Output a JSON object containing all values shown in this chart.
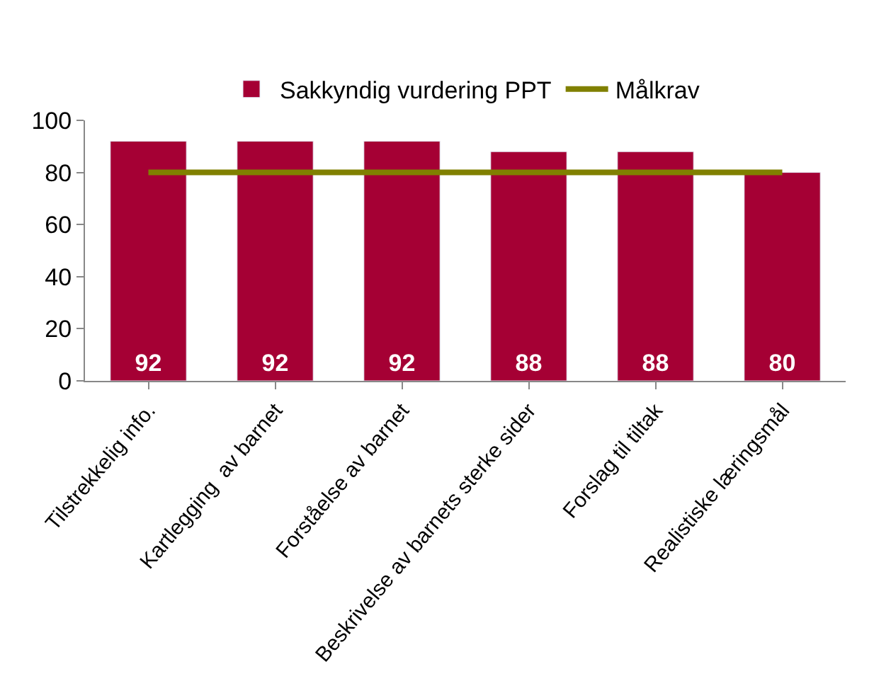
{
  "chart_data": {
    "type": "bar",
    "categories": [
      "Tilstrekkelig info.",
      "Kartlegging  av barnet",
      "Forståelse av barnet",
      "Beskrivelse av barnets sterke sider",
      "Forslag til tiltak",
      "Realistiske læringsmål"
    ],
    "series": [
      {
        "name": "Sakkyndig vurdering PPT",
        "color": "#a50034",
        "values": [
          92,
          92,
          92,
          88,
          88,
          80
        ],
        "value_labels": [
          "92",
          "92",
          "92",
          "88",
          "88",
          "80"
        ]
      },
      {
        "name": "Målkrav",
        "type": "line",
        "color": "#808000",
        "values": [
          80,
          80,
          80,
          80,
          80,
          80
        ]
      }
    ],
    "ylim": [
      0,
      100
    ],
    "yticks": [
      0,
      20,
      40,
      60,
      80,
      100
    ],
    "legend": "top",
    "marker": "none",
    "line_style": "solid"
  }
}
